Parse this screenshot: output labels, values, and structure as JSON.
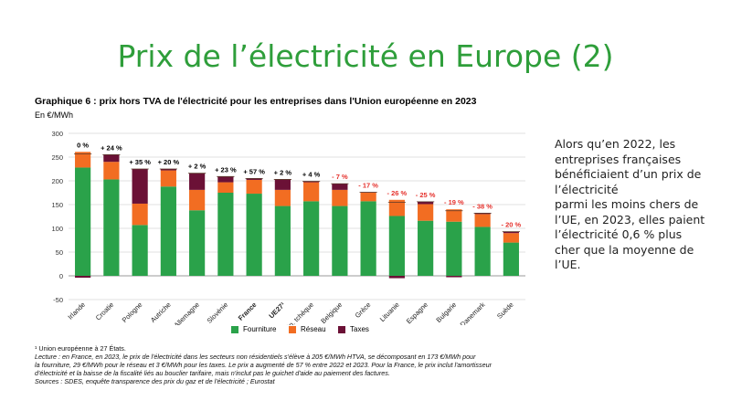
{
  "slide_title": "Prix de l’électricité en Europe (2)",
  "chart_title": "Graphique 6 : prix hors TVA de l'électricité pour les entreprises dans l'Union européenne en 2023",
  "chart_unit": "En €/MWh",
  "colors": {
    "fourniture": "#2aa24a",
    "reseau": "#f26d22",
    "taxes": "#6b1136",
    "pct_negative": "#e5322d",
    "title_green": "#2e9e3a"
  },
  "chart_data": {
    "type": "bar",
    "stacked": true,
    "categories": [
      "Irlande",
      "Croatie",
      "Pologne",
      "Autriche",
      "Allemagne",
      "Slovénie",
      "France",
      "UE27¹",
      "Rép. tchèque",
      "Belgique",
      "Grèce",
      "Lituanie",
      "Espagne",
      "Bulgarie",
      "Danemark",
      "Suède"
    ],
    "bold_categories": [
      "France",
      "UE27¹"
    ],
    "series": [
      {
        "name": "Fourniture",
        "values": [
          228,
          203,
          107,
          188,
          138,
          175,
          173,
          147,
          157,
          147,
          157,
          126,
          116,
          114,
          103,
          70
        ]
      },
      {
        "name": "Réseau",
        "values": [
          33,
          37,
          45,
          34,
          43,
          22,
          29,
          34,
          40,
          34,
          18,
          34,
          35,
          26,
          27,
          20
        ]
      },
      {
        "name": "Taxes",
        "values": [
          -4,
          15,
          73,
          3,
          35,
          12,
          3,
          22,
          2,
          13,
          1,
          -5,
          5,
          -3,
          2,
          3
        ]
      }
    ],
    "change_labels": [
      "0 %",
      "+ 24 %",
      "+ 35 %",
      "+ 20 %",
      "+ 2 %",
      "+ 23 %",
      "+ 57 %",
      "+ 2 %",
      "+ 4 %",
      "- 7 %",
      "- 17 %",
      "- 26 %",
      "- 25 %",
      "- 19 %",
      "- 38 %",
      "- 20 %"
    ],
    "change_negative": [
      false,
      false,
      false,
      false,
      false,
      false,
      false,
      false,
      false,
      true,
      true,
      true,
      true,
      true,
      true,
      true
    ],
    "ylim": [
      -50,
      300
    ],
    "yticks": [
      -50,
      0,
      50,
      100,
      150,
      200,
      250,
      300
    ],
    "grid": true,
    "legend_position": "bottom"
  },
  "notes": {
    "footnote": "¹ Union européenne à 27 États.",
    "lecture_1": "Lecture : en France, en 2023, le prix de l'électricité dans les secteurs non résidentiels s'élève à 205 €/MWh HTVA, se décomposant en 173 €/MWh pour",
    "lecture_2": "la fourniture, 29 €/MWh pour le réseau et 3 €/MWh pour les taxes. Le prix a augmenté de 57 % entre 2022 et 2023. Pour la France, le prix inclut l'amortisseur",
    "lecture_3": "d'électricité et la baisse de la fiscalité liés au bouclier tarifaire, mais n'inclut pas le guichet d'aide au paiement des factures.",
    "sources": "Sources : SDES, enquête transparence des prix du gaz et de l'électricité ; Eurostat"
  },
  "side_text": {
    "line1": " Alors qu’en 2022, les",
    "line2": "entreprises françaises",
    "line3": "bénéficiaient d’un prix de",
    "line4": "l’électricité",
    "line5": "parmi les moins chers de",
    "line6": "l’UE, en 2023, elles paient",
    "line7": "l’électricité 0,6 % plus",
    "line8": "cher que la moyenne de",
    "line9": "l’UE."
  }
}
